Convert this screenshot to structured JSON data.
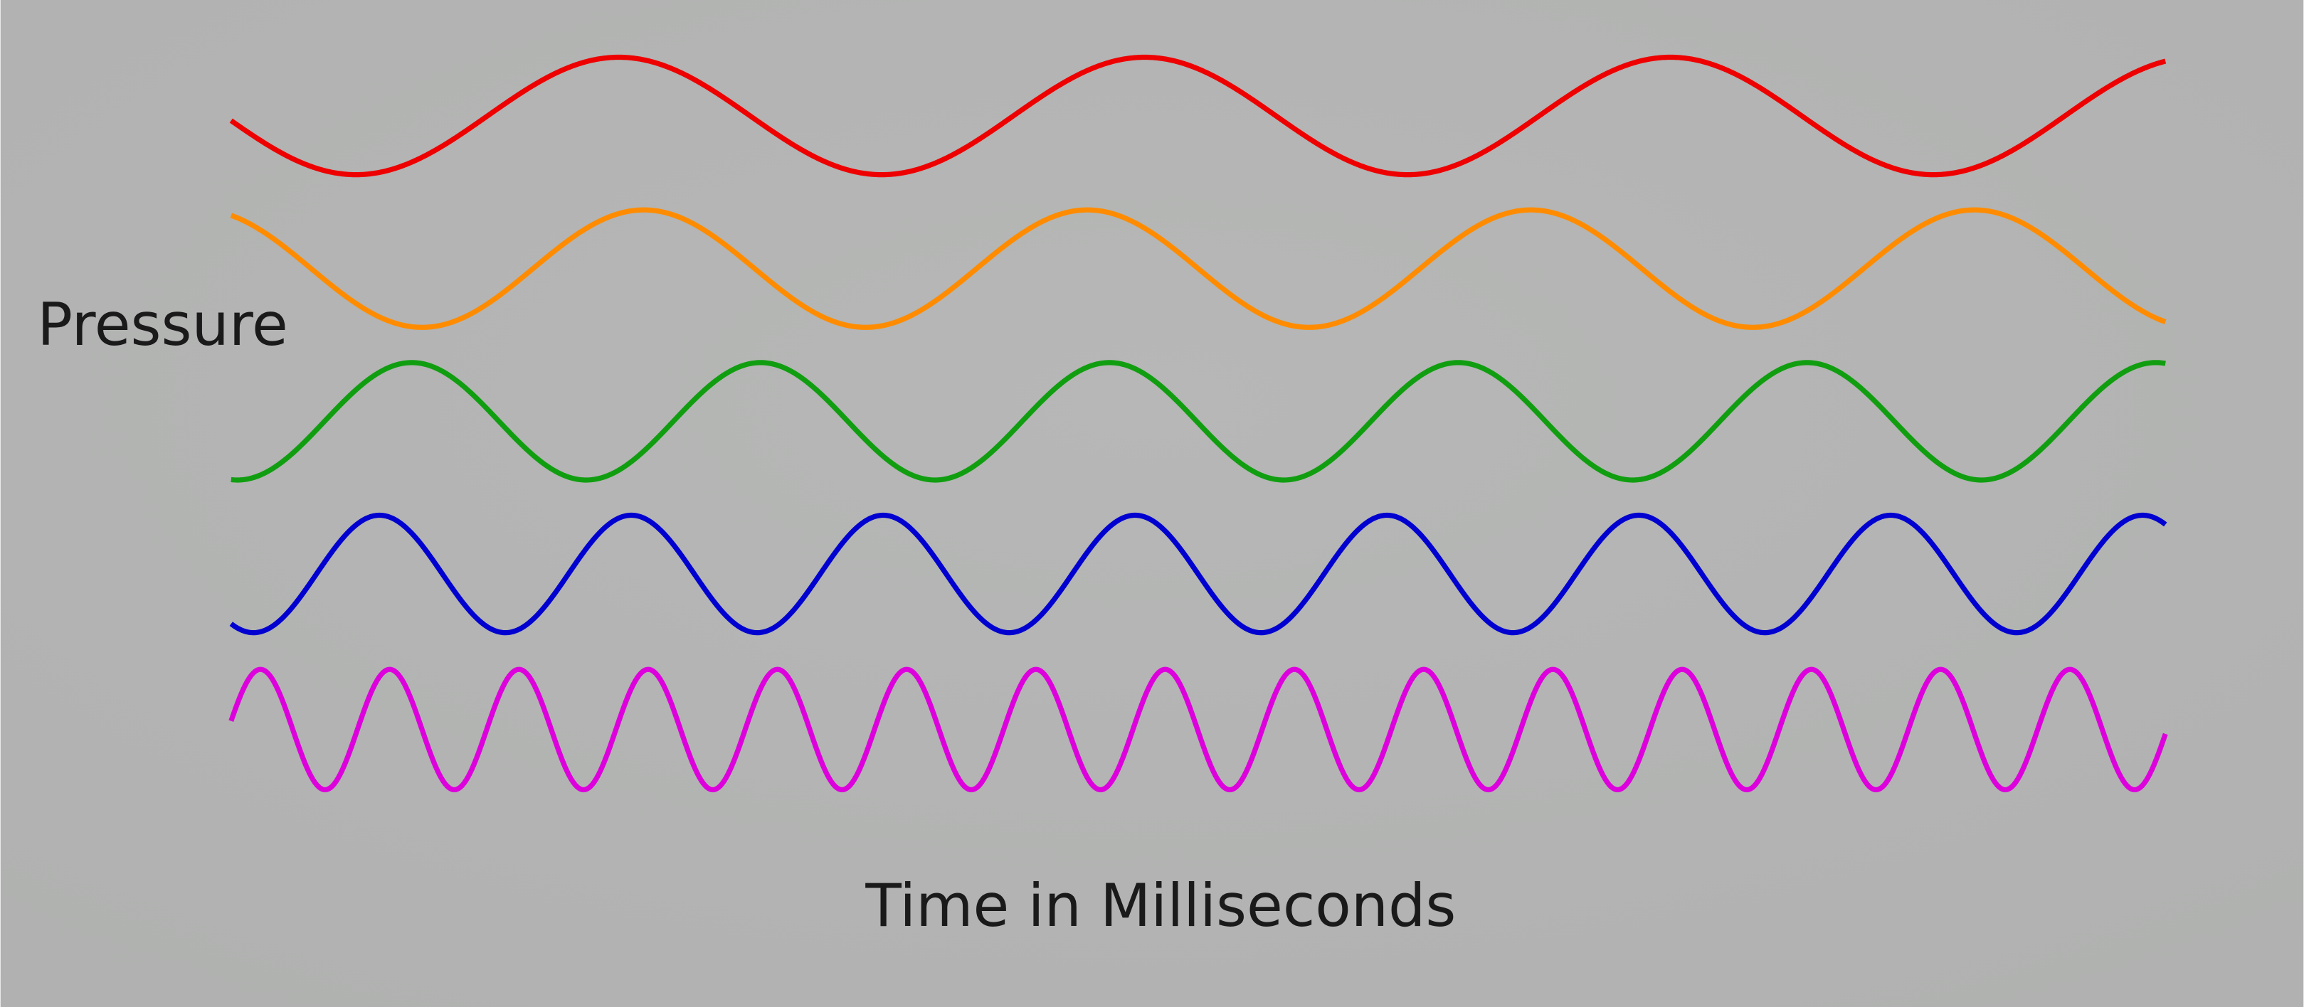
{
  "labels": {
    "y_axis": "Pressure",
    "x_axis": "Time in Milliseconds"
  }
}
